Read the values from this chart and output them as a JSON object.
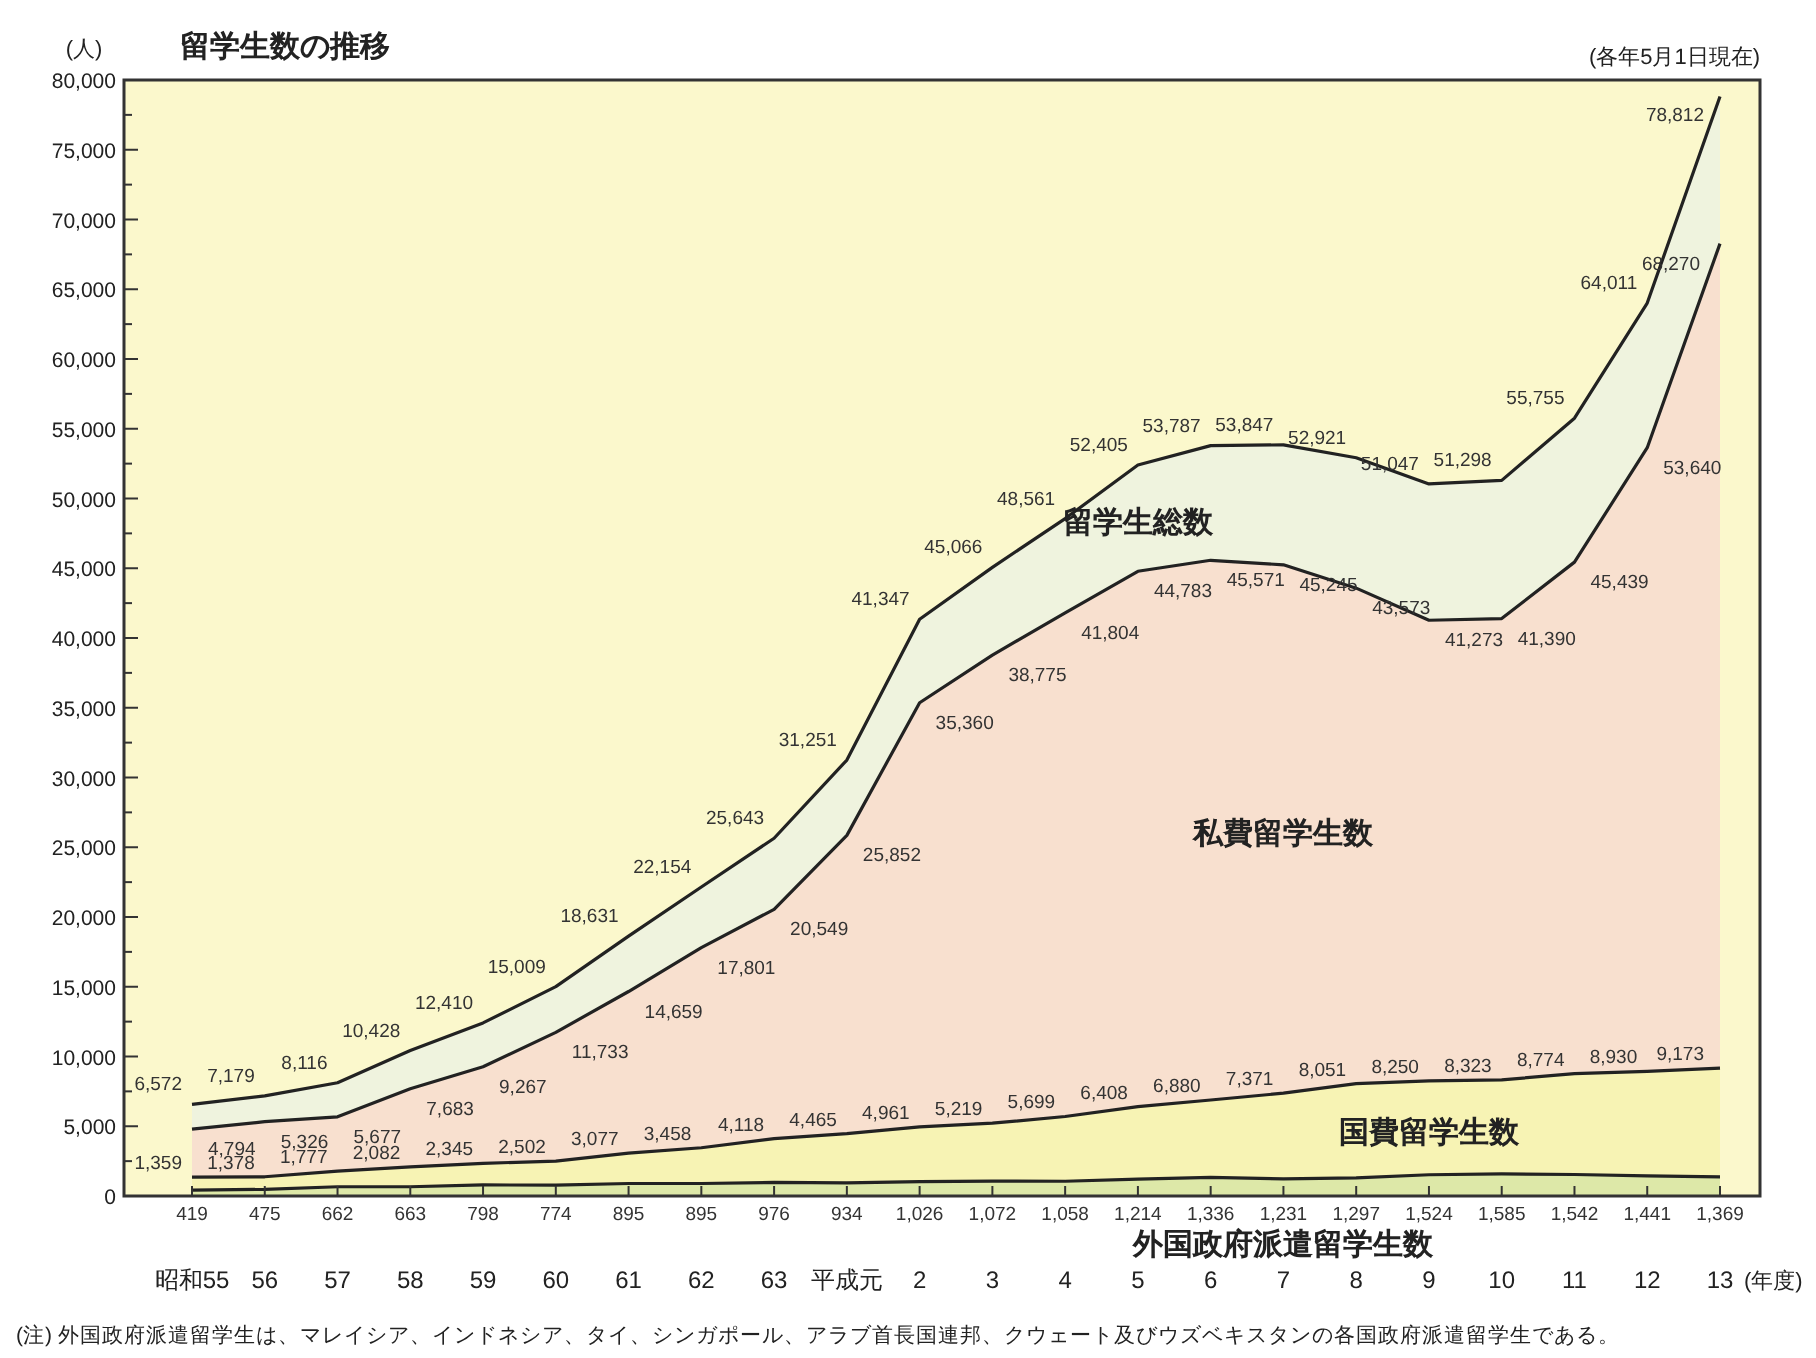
{
  "chart_data": {
    "type": "area",
    "title": "留学生数の推移",
    "ylabel": "(人)",
    "xlabel": "(年度)",
    "annotations": [
      "(各年5月1日現在)",
      "(注) 外国政府派遣留学生は、マレイシア、インドネシア、タイ、シンガポール、アラブ首長国連邦、クウェート及びウズベキスタンの各国政府派遣留学生である。"
    ],
    "categories": [
      "昭和55",
      "56",
      "57",
      "58",
      "59",
      "60",
      "61",
      "62",
      "63",
      "平成元",
      "2",
      "3",
      "4",
      "5",
      "6",
      "7",
      "8",
      "9",
      "10",
      "11",
      "12",
      "13"
    ],
    "series": [
      {
        "name": "留学生総数",
        "color": "#eff3de",
        "values": [
          6572,
          7179,
          8116,
          10428,
          12410,
          15009,
          18631,
          22154,
          25643,
          31251,
          41347,
          45066,
          48561,
          52405,
          53787,
          53847,
          52921,
          51047,
          51298,
          55755,
          64011,
          78812
        ],
        "value_labels": [
          "6,572",
          "7,179",
          "8,116",
          "10,428",
          "12,410",
          "15,009",
          "18,631",
          "22,154",
          "25,643",
          "31,251",
          "41,347",
          "45,066",
          "48,561",
          "52,405",
          "53,787",
          "53,847",
          "52,921",
          "51,047",
          "51,298",
          "55,755",
          "64,011",
          "78,812"
        ]
      },
      {
        "name": "私費留学生数",
        "color": "#f8e0cf",
        "values": [
          4794,
          5326,
          5677,
          7683,
          9267,
          11733,
          14659,
          17801,
          20549,
          25852,
          35360,
          38775,
          41804,
          44783,
          45571,
          45245,
          43573,
          41273,
          41390,
          45439,
          53640,
          68270
        ],
        "value_labels": [
          "4,794",
          "5,326",
          "5,677",
          "7,683",
          "9,267",
          "11,733",
          "14,659",
          "17,801",
          "20,549",
          "25,852",
          "35,360",
          "38,775",
          "41,804",
          "44,783",
          "45,571",
          "45,245",
          "43,573",
          "41,273",
          "41,390",
          "45,439",
          "53,640",
          "68,270"
        ]
      },
      {
        "name": "国費留学生数",
        "color": "#f7f3b4",
        "values": [
          1359,
          1378,
          1777,
          2082,
          2345,
          2502,
          3077,
          3458,
          4118,
          4465,
          4961,
          5219,
          5699,
          6408,
          6880,
          7371,
          8051,
          8250,
          8323,
          8774,
          8930,
          9173
        ],
        "value_labels": [
          "1,359",
          "1,378",
          "1,777",
          "2,082",
          "2,345",
          "2,502",
          "3,077",
          "3,458",
          "4,118",
          "4,465",
          "4,961",
          "5,219",
          "5,699",
          "6,408",
          "6,880",
          "7,371",
          "8,051",
          "8,250",
          "8,323",
          "8,774",
          "8,930",
          "9,173"
        ]
      },
      {
        "name": "外国政府派遣留学生数",
        "color": "#dde8a8",
        "values": [
          419,
          475,
          662,
          663,
          798,
          774,
          895,
          895,
          976,
          934,
          1026,
          1072,
          1058,
          1214,
          1336,
          1231,
          1297,
          1524,
          1585,
          1542,
          1441,
          1369
        ],
        "value_labels": [
          "419",
          "475",
          "662",
          "663",
          "798",
          "774",
          "895",
          "895",
          "976",
          "934",
          "1,026",
          "1,072",
          "1,058",
          "1,214",
          "1,336",
          "1,231",
          "1,297",
          "1,524",
          "1,585",
          "1,542",
          "1,441",
          "1,369"
        ]
      }
    ],
    "ylim": [
      0,
      80000
    ],
    "yticks": [
      0,
      {
        "value": 2500,
        "label": null
      },
      {
        "value": 5000,
        "label": "5,000"
      },
      {
        "value": 7500,
        "label": null
      },
      {
        "value": 10000,
        "label": "10,000"
      },
      {
        "value": 12500,
        "label": null
      },
      {
        "value": 15000,
        "label": "15,000"
      },
      {
        "value": 17500,
        "label": null
      },
      {
        "value": 20000,
        "label": "20,000"
      },
      {
        "value": 22500,
        "label": null
      },
      {
        "value": 25000,
        "label": "25,000"
      },
      {
        "value": 27500,
        "label": null
      },
      {
        "value": 30000,
        "label": "30,000"
      },
      {
        "value": 32500,
        "label": null
      },
      {
        "value": 35000,
        "label": "35,000"
      },
      {
        "value": 37500,
        "label": null
      },
      {
        "value": 40000,
        "label": "40,000"
      },
      {
        "value": 42500,
        "label": null
      },
      {
        "value": 45000,
        "label": "45,000"
      },
      {
        "value": 47500,
        "label": null
      },
      {
        "value": 50000,
        "label": "50,000"
      },
      {
        "value": 52500,
        "label": null
      },
      {
        "value": 55000,
        "label": "55,000"
      },
      {
        "value": 57500,
        "label": null
      },
      {
        "value": 60000,
        "label": "60,000"
      },
      {
        "value": 62500,
        "label": null
      },
      {
        "value": 65000,
        "label": "65,000"
      },
      {
        "value": 67500,
        "label": null
      },
      {
        "value": 70000,
        "label": "70,000"
      },
      {
        "value": 72500,
        "label": null
      },
      {
        "value": 75000,
        "label": "75,000"
      },
      {
        "value": 77500,
        "label": null
      },
      {
        "value": 80000,
        "label": "80,000"
      }
    ],
    "grid": false,
    "marker": "none",
    "line_style": "solid"
  }
}
